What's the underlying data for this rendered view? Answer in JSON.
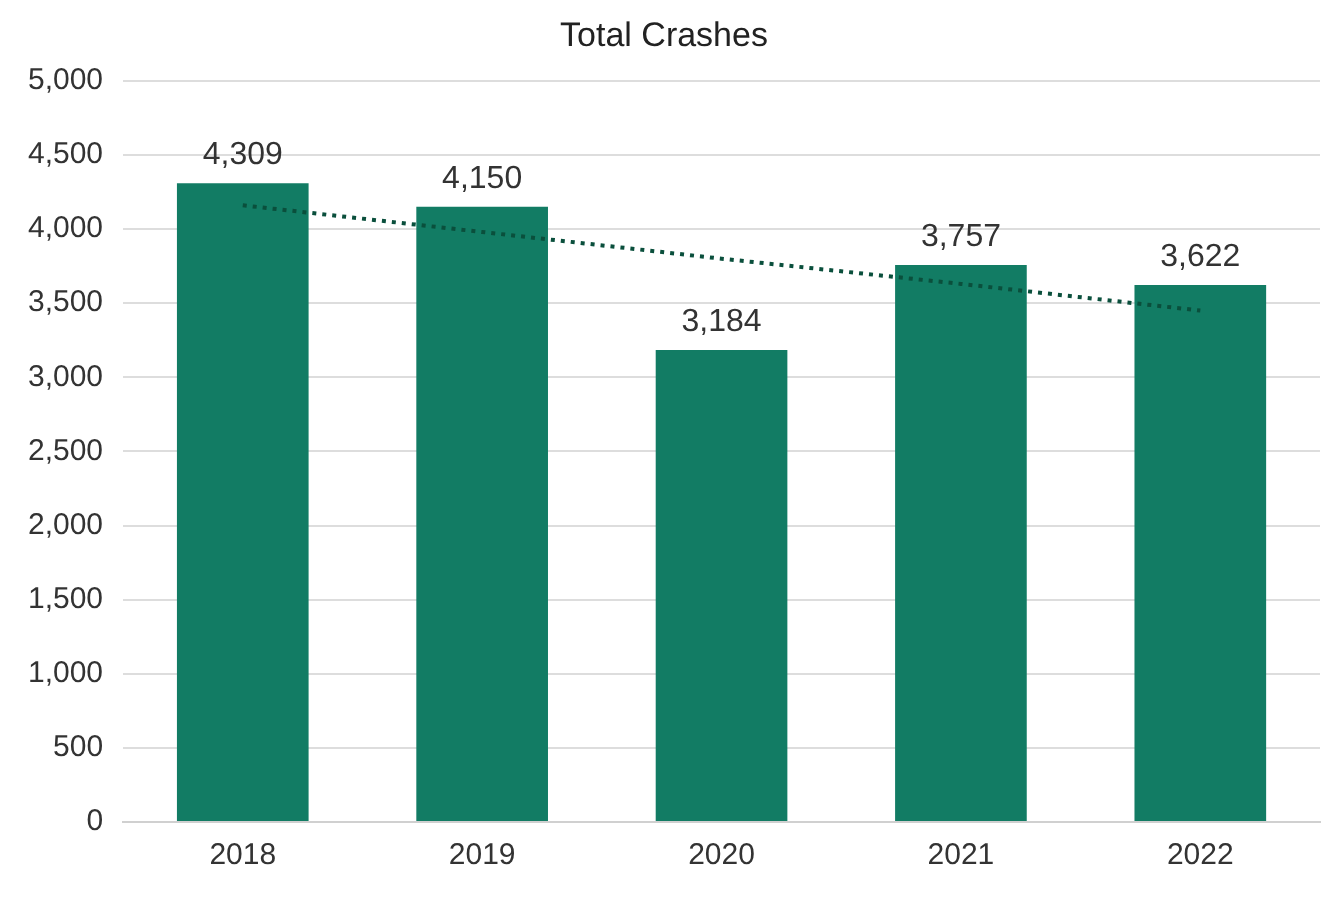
{
  "chart_data": {
    "type": "bar",
    "title": "Total Crashes",
    "categories": [
      "2018",
      "2019",
      "2020",
      "2021",
      "2022"
    ],
    "series": [
      {
        "color": "#127c64",
        "values": [
          4309,
          4150,
          3184,
          3757,
          3622
        ],
        "value_labels": [
          "4,309",
          "4,150",
          "3,184",
          "3,757",
          "3,622"
        ]
      },
      {
        "type": "line",
        "color": "#0a4f3c",
        "line_style": "dotted",
        "marker": "none",
        "values": [
          4160,
          3980,
          3800,
          3630,
          3450
        ]
      }
    ],
    "ylim": [
      0,
      5000
    ],
    "yticks": [
      0,
      500,
      {
        "value": 1000,
        "label": "1,000"
      },
      {
        "value": 1500,
        "label": "1,500"
      },
      {
        "value": 2000,
        "label": "2,000"
      },
      {
        "value": 2500,
        "label": "2,500"
      },
      {
        "value": 3000,
        "label": "3,000"
      },
      {
        "value": 3500,
        "label": "3,500"
      },
      {
        "value": 4000,
        "label": "4,000"
      },
      {
        "value": 4500,
        "label": "4,500"
      },
      {
        "value": 5000,
        "label": "5,000"
      }
    ],
    "grid": "y",
    "legend": false
  }
}
